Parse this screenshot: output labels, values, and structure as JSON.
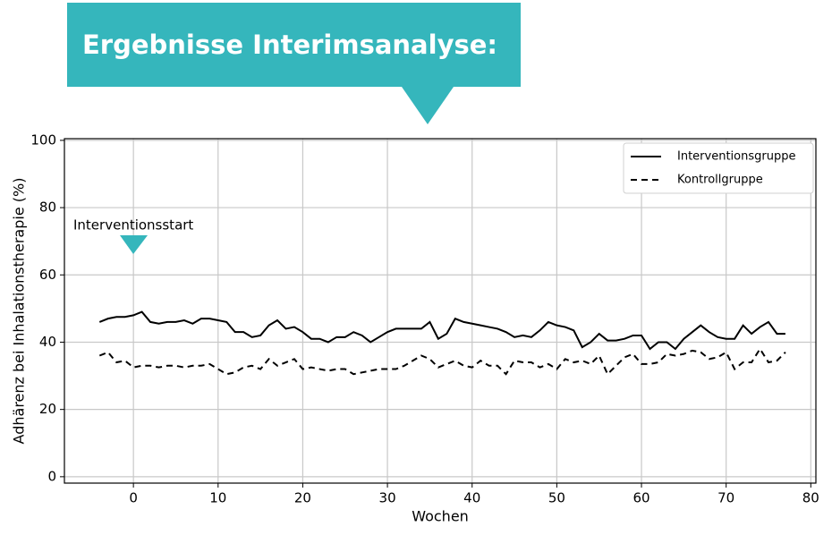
{
  "header": {
    "title": "Ergebnisse Interimsanalyse:"
  },
  "chart_data": {
    "type": "line",
    "x_label": "Wochen",
    "y_label": "Adhärenz bei Inhalationstherapie (%)",
    "annotation": "Interventionsstart",
    "x": [
      -4,
      -3,
      -2,
      -1,
      0,
      1,
      2,
      3,
      4,
      5,
      6,
      7,
      8,
      9,
      10,
      11,
      12,
      13,
      14,
      15,
      16,
      17,
      18,
      19,
      20,
      21,
      22,
      23,
      24,
      25,
      26,
      27,
      28,
      29,
      30,
      31,
      32,
      33,
      34,
      35,
      36,
      37,
      38,
      39,
      40,
      41,
      42,
      43,
      44,
      45,
      46,
      47,
      48,
      49,
      50,
      51,
      52,
      53,
      54,
      55,
      56,
      57,
      58,
      59,
      60,
      61,
      62,
      63,
      64,
      65,
      66,
      67,
      68,
      69,
      70,
      71,
      72,
      73,
      74,
      75,
      76,
      77
    ],
    "series": [
      {
        "name": "Interventionsgruppe",
        "color": "#000000",
        "linestyle": "solid",
        "values": [
          46,
          47,
          47.5,
          47.5,
          48,
          49,
          46,
          45.5,
          46,
          46,
          46.5,
          45.5,
          47,
          47,
          46.5,
          46,
          43,
          43,
          41.5,
          42,
          45,
          46.5,
          44,
          44.5,
          43,
          41,
          41,
          40,
          41.5,
          41.5,
          43,
          42,
          40,
          41.5,
          43,
          44,
          44,
          44,
          44,
          46,
          41,
          42.5,
          47,
          46,
          45.5,
          45,
          44.5,
          44,
          43,
          41.5,
          42,
          41.5,
          43.5,
          46,
          45,
          44.5,
          43.5,
          38.5,
          40,
          42.5,
          40.5,
          40.5,
          41,
          42,
          42,
          38,
          40,
          40,
          38,
          41,
          43,
          45,
          43,
          41.5,
          41,
          41,
          45,
          42.5,
          44.5,
          46,
          42.5,
          42.5
        ]
      },
      {
        "name": "Kontrollgruppe",
        "color": "#000000",
        "linestyle": "dashed",
        "values": [
          36,
          37,
          34,
          34.5,
          32.5,
          33,
          33,
          32.5,
          33,
          33,
          32.5,
          33,
          33,
          33.5,
          32,
          30.5,
          31,
          32.5,
          33,
          32,
          35,
          33,
          34,
          35,
          32,
          32.5,
          32,
          31.5,
          32,
          32,
          30.5,
          31,
          31.5,
          32,
          32,
          32,
          33,
          34.5,
          36,
          35,
          32.5,
          33.5,
          34.5,
          33,
          32.5,
          34.5,
          33,
          33,
          30.5,
          34.5,
          34,
          34,
          32.5,
          33.5,
          32,
          35,
          34,
          34.5,
          33.5,
          36,
          30.5,
          33,
          35.5,
          36.5,
          33.5,
          33.5,
          34,
          36.5,
          36,
          36.5,
          37.5,
          37,
          35,
          35.5,
          37,
          32,
          34,
          34,
          38,
          34,
          34.5,
          37
        ]
      }
    ],
    "xlim": [
      -8.15,
      80.6
    ],
    "xticks": [
      0,
      10,
      20,
      30,
      40,
      50,
      60,
      70,
      80
    ],
    "ylim": [
      -1.9,
      100.5
    ],
    "yticks": [
      0,
      20,
      40,
      60,
      80,
      100
    ],
    "grid": true,
    "legend": "upper right"
  }
}
